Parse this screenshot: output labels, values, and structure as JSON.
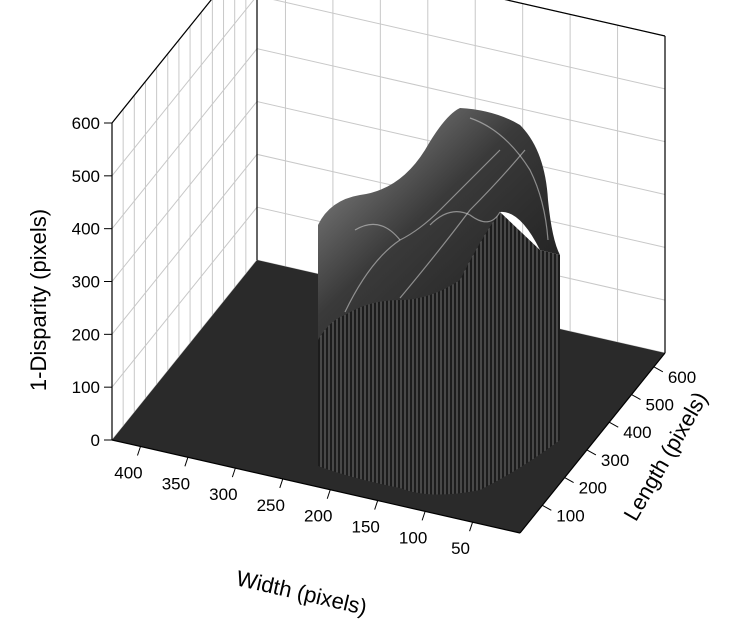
{
  "chart_data": {
    "type": "surface3d",
    "title": "",
    "xlabel": "Width (pixels)",
    "ylabel": "Length (pixels)",
    "zlabel": "1-Disparity (pixels)",
    "x_ticks": [
      50,
      100,
      150,
      200,
      250,
      300,
      350,
      400
    ],
    "y_ticks": [
      100,
      200,
      300,
      400,
      500,
      600
    ],
    "z_ticks": [
      0,
      100,
      200,
      300,
      400,
      500,
      600
    ],
    "xlim": [
      0,
      430
    ],
    "ylim": [
      0,
      650
    ],
    "zlim": [
      0,
      600
    ],
    "grid": true,
    "base_level": 0,
    "peak_value": 600,
    "surface_color": "#2a2a2a",
    "highlight_color": "#d8d8d8"
  }
}
